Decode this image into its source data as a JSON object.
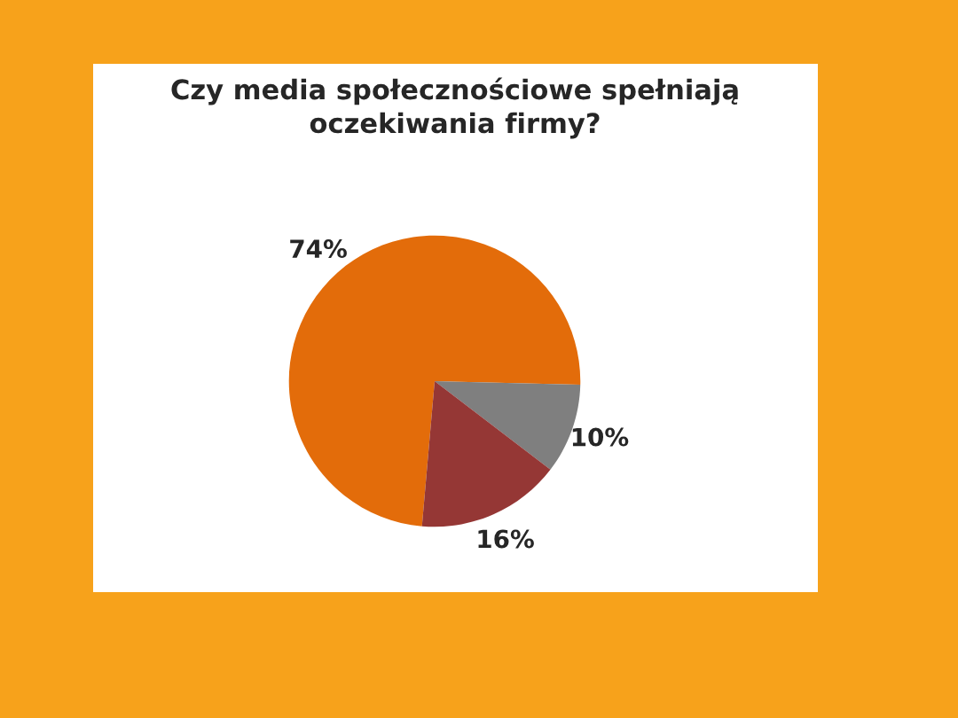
{
  "chart_data": {
    "type": "pie",
    "title": "Czy media społecznościowe spełniają\noczekiwania firmy?",
    "categories": [
      null,
      null,
      null
    ],
    "values": [
      74,
      10,
      16
    ],
    "colors": [
      "#e36c0a",
      "#7f7f7f",
      "#953735"
    ],
    "value_labels": [
      "74%",
      "10%",
      "16%"
    ]
  }
}
